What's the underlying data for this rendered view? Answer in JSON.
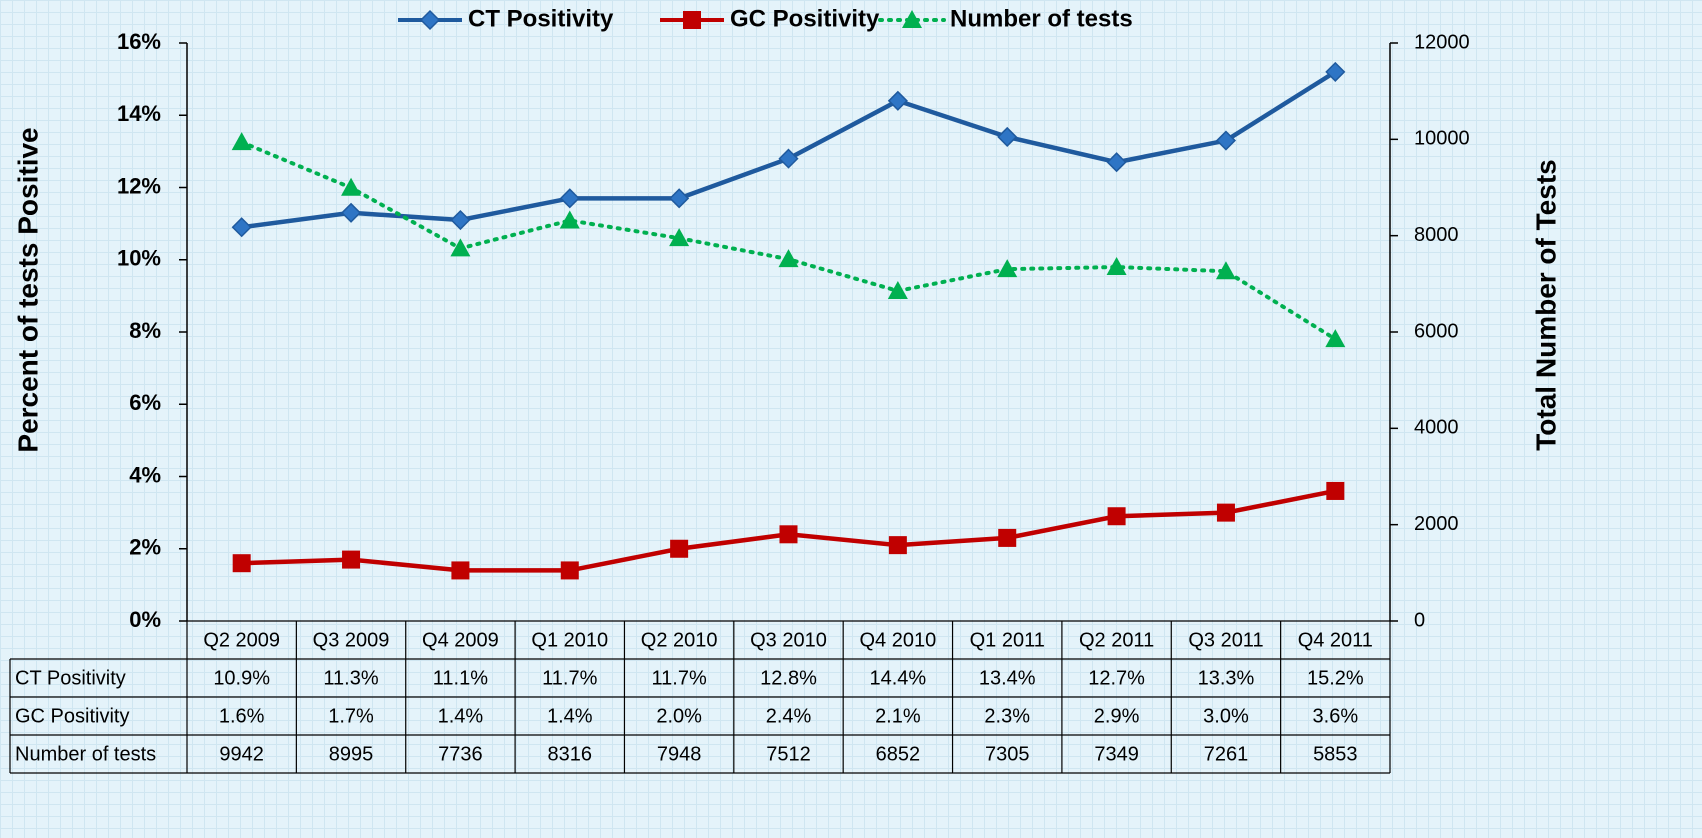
{
  "chart_data": {
    "type": "line",
    "categories": [
      "Q2 2009",
      "Q3 2009",
      "Q4 2009",
      "Q1 2010",
      "Q2 2010",
      "Q3 2010",
      "Q4 2010",
      "Q1 2011",
      "Q2 2011",
      "Q3 2011",
      "Q4 2011"
    ],
    "series": [
      {
        "name": "CT Positivity",
        "color": "#1f5a9e",
        "marker": "diamond",
        "values": [
          10.9,
          11.3,
          11.1,
          11.7,
          11.7,
          12.8,
          14.4,
          13.4,
          12.7,
          13.3,
          15.2
        ],
        "value_labels": [
          "10.9%",
          "11.3%",
          "11.1%",
          "11.7%",
          "11.7%",
          "12.8%",
          "14.4%",
          "13.4%",
          "12.7%",
          "13.3%",
          "15.2%"
        ]
      },
      {
        "name": "GC Positivity",
        "color": "#c00000",
        "marker": "square",
        "values": [
          1.6,
          1.7,
          1.4,
          1.4,
          2.0,
          2.4,
          2.1,
          2.3,
          2.9,
          3.0,
          3.6
        ],
        "value_labels": [
          "1.6%",
          "1.7%",
          "1.4%",
          "1.4%",
          "2.0%",
          "2.4%",
          "2.1%",
          "2.3%",
          "2.9%",
          "3.0%",
          "3.6%"
        ]
      },
      {
        "name": "Number of tests",
        "color": "#00b050",
        "marker": "triangle",
        "dash": "dotted",
        "axis": "y2",
        "values": [
          9942,
          8995,
          7736,
          8316,
          7948,
          7512,
          6852,
          7305,
          7349,
          7261,
          5853
        ]
      }
    ],
    "ylabel": "Percent of tests  Positive",
    "y2label": "Total Number of Tests",
    "ylim": [
      0,
      16
    ],
    "yticks": [
      {
        "value": 0,
        "label": "0%"
      },
      {
        "value": 2,
        "label": "2%"
      },
      {
        "value": 4,
        "label": "4%"
      },
      {
        "value": 6,
        "label": "6%"
      },
      {
        "value": 8,
        "label": "8%"
      },
      {
        "value": 10,
        "label": "10%"
      },
      {
        "value": 12,
        "label": "12%"
      },
      {
        "value": 14,
        "label": "14%"
      },
      {
        "value": 16,
        "label": "16%"
      }
    ],
    "y2lim": [
      0,
      12000
    ],
    "y2ticks": [
      0,
      2000,
      4000,
      6000,
      8000,
      10000,
      12000
    ],
    "legend": "top",
    "data_table": true
  }
}
